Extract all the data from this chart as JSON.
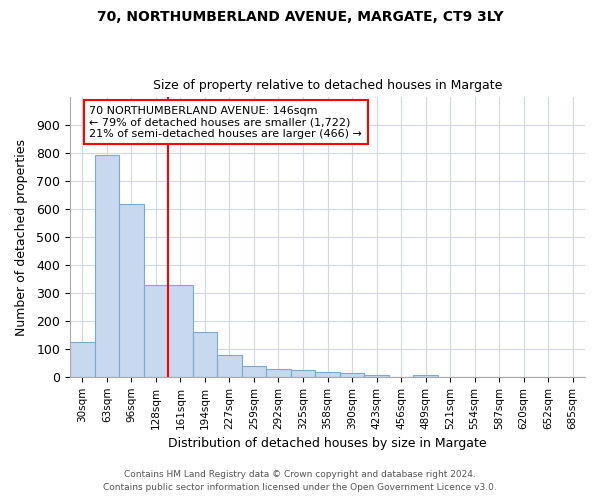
{
  "title1": "70, NORTHUMBERLAND AVENUE, MARGATE, CT9 3LY",
  "title2": "Size of property relative to detached houses in Margate",
  "xlabel": "Distribution of detached houses by size in Margate",
  "ylabel": "Number of detached properties",
  "bar_labels": [
    "30sqm",
    "63sqm",
    "96sqm",
    "128sqm",
    "161sqm",
    "194sqm",
    "227sqm",
    "259sqm",
    "292sqm",
    "325sqm",
    "358sqm",
    "390sqm",
    "423sqm",
    "456sqm",
    "489sqm",
    "521sqm",
    "554sqm",
    "587sqm",
    "620sqm",
    "652sqm",
    "685sqm"
  ],
  "bar_values": [
    125,
    795,
    620,
    330,
    330,
    160,
    78,
    40,
    28,
    25,
    18,
    13,
    8,
    0,
    8,
    0,
    0,
    0,
    0,
    0,
    0
  ],
  "bar_color": "#c8d8ee",
  "bar_edgecolor": "#7aabce",
  "vline_x": 3.5,
  "vline_color": "red",
  "annotation_line1": "70 NORTHUMBERLAND AVENUE: 146sqm",
  "annotation_line2": "← 79% of detached houses are smaller (1,722)",
  "annotation_line3": "21% of semi-detached houses are larger (466) →",
  "annotation_box_color": "white",
  "annotation_box_edgecolor": "red",
  "ylim": [
    0,
    1000
  ],
  "yticks": [
    0,
    100,
    200,
    300,
    400,
    500,
    600,
    700,
    800,
    900,
    1000
  ],
  "footer_text1": "Contains HM Land Registry data © Crown copyright and database right 2024.",
  "footer_text2": "Contains public sector information licensed under the Open Government Licence v3.0.",
  "bg_color": "#ffffff",
  "plot_bg_color": "#ffffff",
  "grid_color": "#d0d8e8"
}
